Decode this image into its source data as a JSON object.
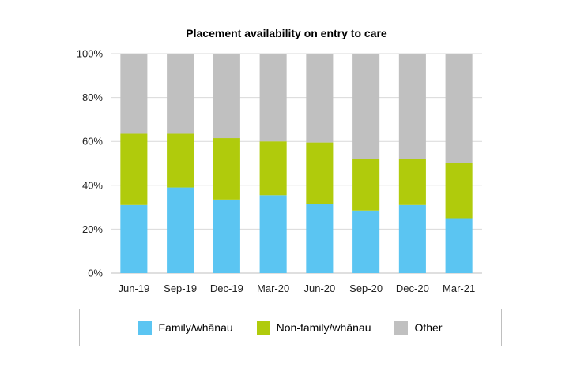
{
  "chart_data": {
    "type": "bar",
    "stacked": true,
    "title": "Placement availability on entry to care",
    "categories": [
      "Jun-19",
      "Sep-19",
      "Dec-19",
      "Mar-20",
      "Jun-20",
      "Sep-20",
      "Dec-20",
      "Mar-21"
    ],
    "series": [
      {
        "name": "Family/whānau",
        "color": "#5bc5f2",
        "values": [
          31,
          39,
          33.5,
          35.5,
          31.5,
          28.5,
          31,
          25
        ]
      },
      {
        "name": "Non-family/whānau",
        "color": "#b0cb0c",
        "values": [
          32.5,
          24.5,
          28,
          24.5,
          28,
          23.5,
          21,
          25
        ]
      },
      {
        "name": "Other",
        "color": "#c0c0c0",
        "values": [
          36.5,
          36.5,
          38.5,
          40,
          40.5,
          48,
          48,
          50
        ]
      }
    ],
    "yticks": [
      "0%",
      "20%",
      "40%",
      "60%",
      "80%",
      "100%"
    ],
    "ylim": [
      0,
      100
    ],
    "xlabel": "",
    "ylabel": "",
    "grid": true,
    "legend_position": "bottom"
  }
}
